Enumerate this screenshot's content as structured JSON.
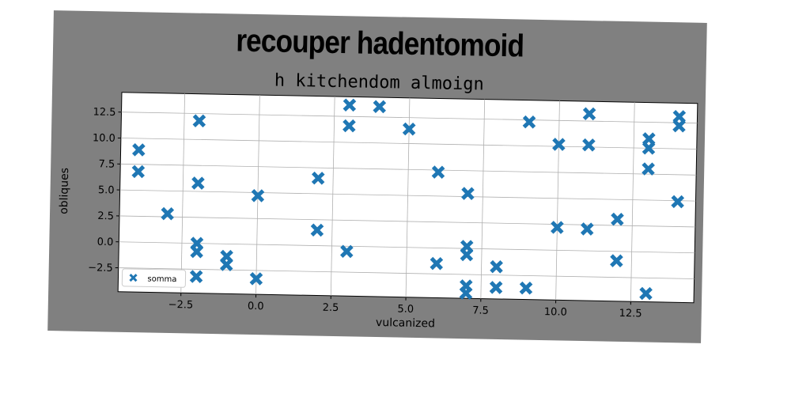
{
  "chart_data": {
    "type": "scatter",
    "suptitle": "recouper hadentomoid",
    "title": "h kitchendom almoign",
    "xlabel": "vulcanized",
    "ylabel": "obliques",
    "xlim": [
      -4.6,
      14.6
    ],
    "ylim": [
      -4.8,
      14.4
    ],
    "xticks": [
      -2.5,
      0.0,
      2.5,
      5.0,
      7.5,
      10.0,
      12.5
    ],
    "xtick_labels": [
      "−2.5",
      "0.0",
      "2.5",
      "5.0",
      "7.5",
      "10.0",
      "12.5"
    ],
    "yticks": [
      -2.5,
      0.0,
      2.5,
      5.0,
      7.5,
      10.0,
      12.5
    ],
    "ytick_labels": [
      "−2.5",
      "0.0",
      "2.5",
      "5.0",
      "7.5",
      "10.0",
      "12.5"
    ],
    "grid": true,
    "legend_position": "lower-left",
    "marker": "X",
    "color": "#1f77b4",
    "series": [
      {
        "name": "somma",
        "points": [
          [
            -4,
            8.9
          ],
          [
            -4,
            6.8
          ],
          [
            -3,
            2.8
          ],
          [
            -2,
            11.8
          ],
          [
            -2,
            5.8
          ],
          [
            -2,
            0.0
          ],
          [
            -2,
            -0.8
          ],
          [
            -2,
            -3.2
          ],
          [
            -1,
            -1.2
          ],
          [
            -1,
            -2.0
          ],
          [
            0,
            4.7
          ],
          [
            0,
            -3.3
          ],
          [
            2,
            6.5
          ],
          [
            2,
            1.5
          ],
          [
            3,
            13.6
          ],
          [
            3,
            11.6
          ],
          [
            3,
            -0.5
          ],
          [
            4,
            13.5
          ],
          [
            5,
            11.4
          ],
          [
            6,
            7.3
          ],
          [
            6,
            -1.5
          ],
          [
            7,
            5.3
          ],
          [
            7,
            0.2
          ],
          [
            7,
            -0.6
          ],
          [
            7,
            -3.6
          ],
          [
            7,
            -4.3
          ],
          [
            8,
            -1.7
          ],
          [
            8,
            -3.7
          ],
          [
            9,
            12.3
          ],
          [
            9,
            -3.7
          ],
          [
            10,
            10.2
          ],
          [
            10,
            2.2
          ],
          [
            11,
            13.2
          ],
          [
            11,
            10.2
          ],
          [
            11,
            2.1
          ],
          [
            12,
            3.1
          ],
          [
            12,
            -0.9
          ],
          [
            13,
            10.9
          ],
          [
            13,
            10.0
          ],
          [
            13,
            8.0
          ],
          [
            13,
            -4.0
          ],
          [
            14,
            13.1
          ],
          [
            14,
            12.2
          ],
          [
            14,
            4.9
          ]
        ]
      }
    ]
  }
}
